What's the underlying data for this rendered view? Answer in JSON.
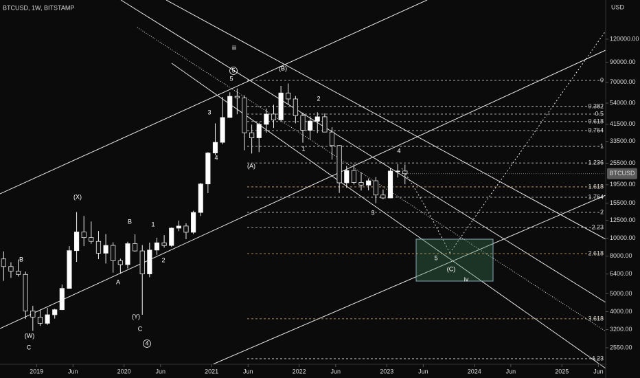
{
  "chart_data": {
    "type": "candlestick",
    "title": "BTCUSD, 1W, BITSTAMP",
    "y_label": "USD",
    "name": "BTCUSD",
    "log_scale": true,
    "up_color": "#ffffff",
    "down_color": "#111111",
    "xlim": [
      "2018-08",
      "2025-07"
    ],
    "xticks": [
      {
        "value": "2019-01",
        "label": "2019"
      },
      {
        "value": "2019-06",
        "label": "Jun"
      },
      {
        "value": "2020-01",
        "label": "2020"
      },
      {
        "value": "2020-06",
        "label": "Jun"
      },
      {
        "value": "2021-01",
        "label": "2021"
      },
      {
        "value": "2021-06",
        "label": "Jun"
      },
      {
        "value": "2022-01",
        "label": "2022"
      },
      {
        "value": "2022-06",
        "label": "Jun"
      },
      {
        "value": "2023-01",
        "label": "2023"
      },
      {
        "value": "2023-06",
        "label": "Jun"
      },
      {
        "value": "2024-01",
        "label": "2024"
      },
      {
        "value": "2024-06",
        "label": "Jun"
      },
      {
        "value": "2025-01",
        "label": "2025"
      },
      {
        "value": "2025-06",
        "label": "Jun"
      }
    ],
    "ylim": [
      2076,
      195600
    ],
    "yticks": [
      {
        "value": 120000,
        "label": "120000.00"
      },
      {
        "value": 90000,
        "label": "90000.00"
      },
      {
        "value": 70000,
        "label": "70000.00"
      },
      {
        "value": 54000,
        "label": "54000.00"
      },
      {
        "value": 41500,
        "label": "41500.00"
      },
      {
        "value": 33500,
        "label": "33500.00"
      },
      {
        "value": 25500,
        "label": "25500.00"
      },
      {
        "value": 19500,
        "label": "19500.00"
      },
      {
        "value": 15500,
        "label": "15500.00"
      },
      {
        "value": 12500,
        "label": "12500.00"
      },
      {
        "value": 10000,
        "label": "10000.00"
      },
      {
        "value": 8000,
        "label": "8000.00"
      },
      {
        "value": 6400,
        "label": "6400.00"
      },
      {
        "value": 5000,
        "label": "5000.00"
      },
      {
        "value": 4000,
        "label": "4000.00"
      },
      {
        "value": 3200,
        "label": "3200.00"
      },
      {
        "value": 2550,
        "label": "2550.00"
      }
    ],
    "x": [
      "2018-08",
      "2018-09",
      "2018-10",
      "2018-11",
      "2018-12",
      "2019-01",
      "2019-02",
      "2019-03",
      "2019-04",
      "2019-05",
      "2019-06",
      "2019-07",
      "2019-08",
      "2019-09",
      "2019-10",
      "2019-11",
      "2019-12",
      "2020-01",
      "2020-02",
      "2020-03",
      "2020-04",
      "2020-05",
      "2020-06",
      "2020-07",
      "2020-08",
      "2020-09",
      "2020-10",
      "2020-11",
      "2020-12",
      "2021-01",
      "2021-02",
      "2021-03",
      "2021-04",
      "2021-05",
      "2021-06",
      "2021-07",
      "2021-08",
      "2021-09",
      "2021-10",
      "2021-11",
      "2021-12",
      "2022-01",
      "2022-02",
      "2022-03",
      "2022-04",
      "2022-05",
      "2022-06",
      "2022-07",
      "2022-08",
      "2022-09",
      "2022-10",
      "2022-11",
      "2022-12",
      "2023-01",
      "2023-02",
      "2023-03"
    ],
    "open": [
      7730,
      7030,
      6630,
      6370,
      4040,
      3740,
      3460,
      3850,
      4100,
      5350,
      8570,
      10820,
      10090,
      9620,
      8300,
      9150,
      7550,
      7200,
      9350,
      8540,
      6410,
      8630,
      9450,
      9140,
      11350,
      11650,
      10780,
      13800,
      19700,
      28990,
      33110,
      45140,
      58800,
      57700,
      37300,
      35040,
      41460,
      47130,
      43820,
      61300,
      56900,
      46200,
      38480,
      43190,
      45540,
      37640,
      31800,
      19980,
      23300,
      20050,
      19420,
      20490,
      17160,
      16540,
      23140,
      23150
    ],
    "high": [
      8490,
      7410,
      7680,
      6600,
      4300,
      4110,
      4200,
      4150,
      5620,
      9070,
      13880,
      13200,
      12330,
      10950,
      10540,
      9510,
      7750,
      9580,
      10500,
      9190,
      9470,
      10070,
      10400,
      11450,
      12470,
      12070,
      14100,
      19950,
      29300,
      41950,
      58350,
      61780,
      64850,
      59500,
      41300,
      42300,
      50500,
      52900,
      67000,
      69000,
      59050,
      47990,
      45800,
      48190,
      47450,
      40000,
      31980,
      24670,
      25200,
      22800,
      21100,
      21450,
      18390,
      23950,
      25250,
      25100
    ],
    "low": [
      5880,
      6100,
      6200,
      3650,
      3150,
      3350,
      3390,
      3670,
      4080,
      5330,
      7450,
      9070,
      9330,
      7710,
      7300,
      6510,
      6420,
      6860,
      8450,
      3850,
      6150,
      8130,
      8900,
      8980,
      10930,
      9880,
      10540,
      13200,
      17570,
      28130,
      32300,
      45000,
      47000,
      30000,
      28800,
      29300,
      37330,
      39600,
      43300,
      53250,
      42000,
      32950,
      34300,
      37200,
      37700,
      26700,
      17600,
      18780,
      19550,
      18150,
      18200,
      15480,
      16260,
      16500,
      21350,
      19600
    ],
    "close": [
      7030,
      6630,
      6370,
      4040,
      3740,
      3460,
      3850,
      4100,
      5350,
      8570,
      10820,
      10090,
      9620,
      8300,
      9150,
      7550,
      7200,
      9350,
      8540,
      6410,
      8630,
      9450,
      9140,
      11350,
      11650,
      10780,
      13800,
      19700,
      28990,
      33110,
      45140,
      58800,
      57700,
      37300,
      35040,
      41460,
      47130,
      43820,
      61300,
      56900,
      46200,
      38480,
      43190,
      45540,
      37640,
      31800,
      19980,
      23300,
      20050,
      19420,
      20490,
      17160,
      16540,
      23140,
      23150,
      22400
    ],
    "fib_levels": [
      {
        "ratio": 0,
        "price": 71700,
        "color": "#e0e0e0"
      },
      {
        "ratio": 0.382,
        "price": 51800,
        "color": "#e0e0e0"
      },
      {
        "ratio": 0.5,
        "price": 47100,
        "color": "#e0e0e0"
      },
      {
        "ratio": 0.618,
        "price": 42900,
        "color": "#e0e0e0"
      },
      {
        "ratio": 0.764,
        "price": 38350,
        "color": "#e0e0e0"
      },
      {
        "ratio": 1,
        "price": 31500,
        "color": "#e0e0e0"
      },
      {
        "ratio": 1.236,
        "price": 25600,
        "color": "#e0e0e0"
      },
      {
        "ratio": 1.618,
        "price": 18990,
        "color": "#d8b070"
      },
      {
        "ratio": 1.764,
        "price": 16690,
        "color": "#e0e0e0"
      },
      {
        "ratio": 2,
        "price": 13820,
        "color": "#e0e0e0"
      },
      {
        "ratio": 2.23,
        "price": 11450,
        "color": "#e0e0e0"
      },
      {
        "ratio": 2.618,
        "price": 8260,
        "color": "#d8b070"
      },
      {
        "ratio": 3.618,
        "price": 3660,
        "color": "#d8b070"
      },
      {
        "ratio": 4.23,
        "price": 2225,
        "color": "#e0e0e0"
      }
    ],
    "last_price": 22400,
    "annotations": [
      "B",
      "(W)",
      "C",
      "(X)",
      "B",
      "1",
      "2",
      "A",
      "(Y)",
      "C",
      "4",
      "3",
      "4",
      "5",
      "5",
      "iii",
      "(B)",
      "(A)",
      "1",
      "2",
      "3",
      "4",
      "5",
      "(C)",
      "iv"
    ]
  }
}
